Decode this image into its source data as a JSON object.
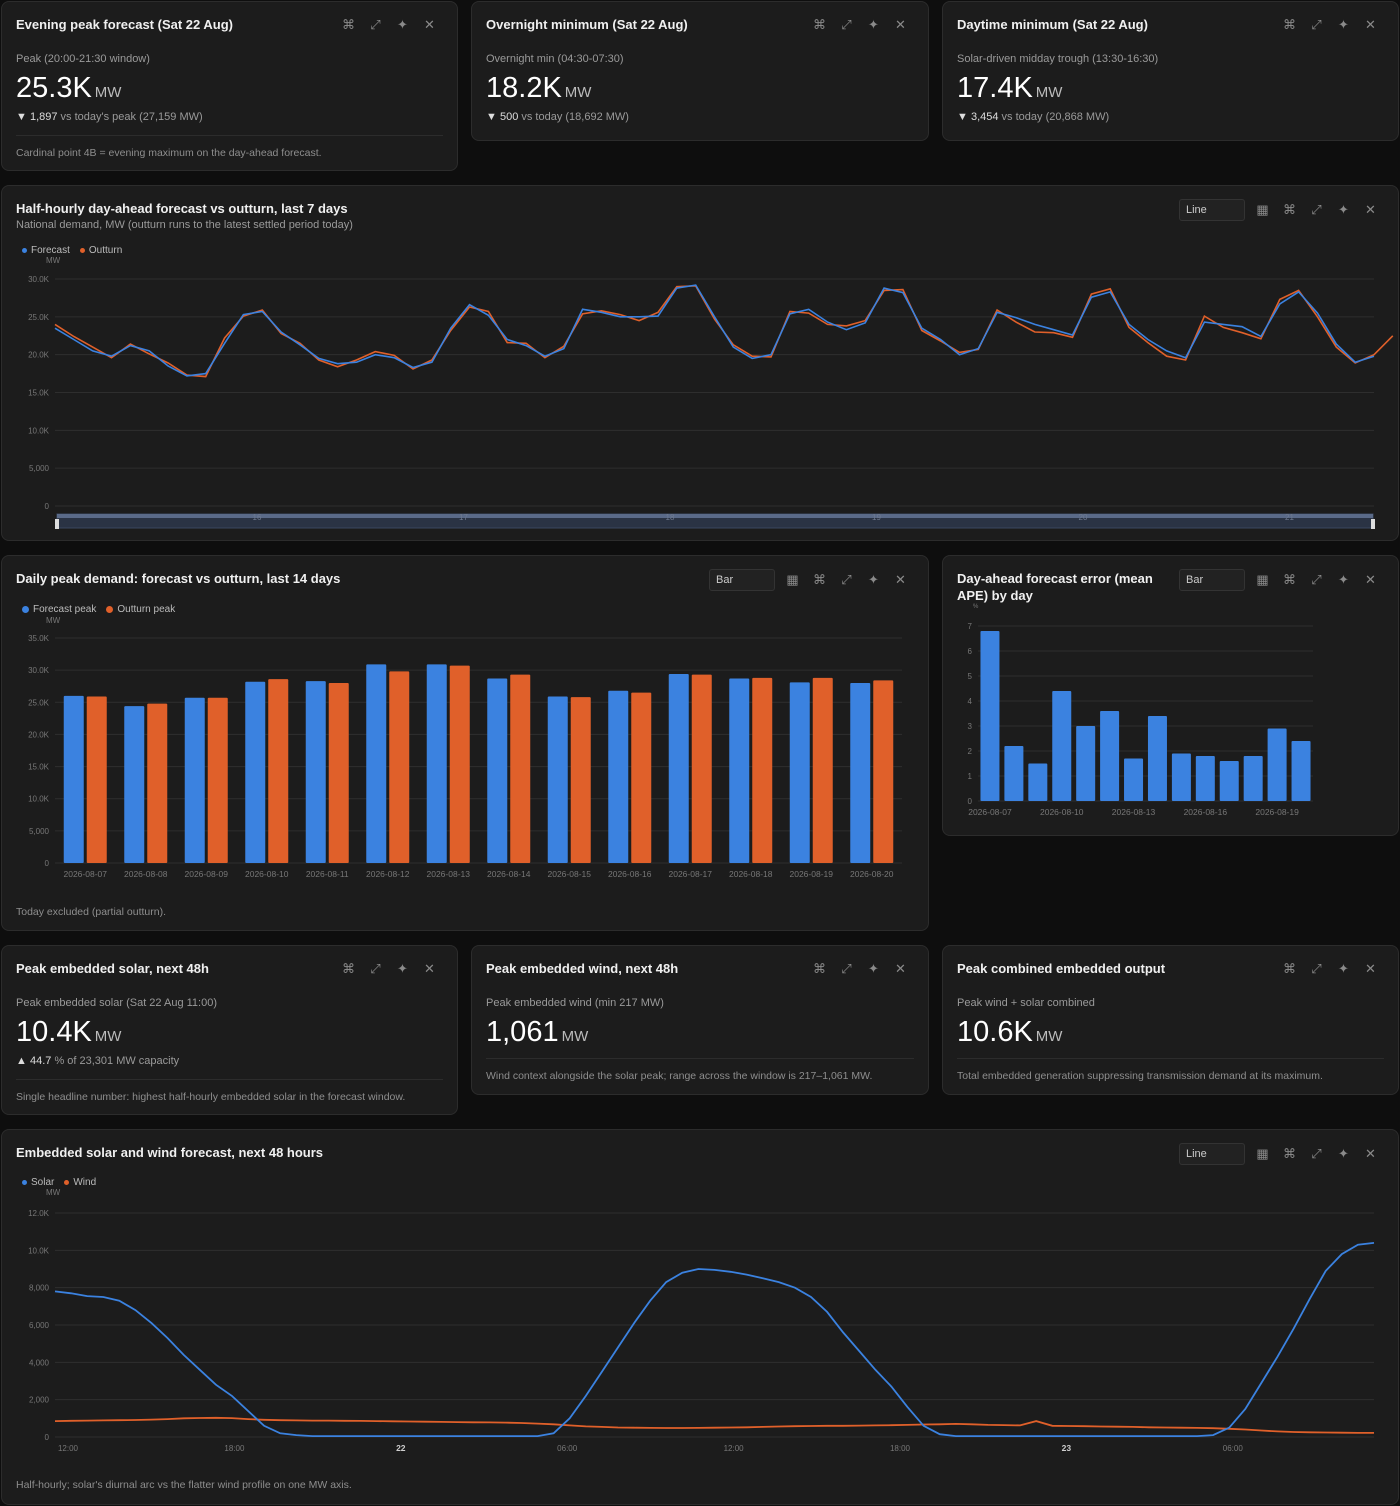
{
  "colors": {
    "forecast": "#3b82e0",
    "outturn": "#e0602a",
    "grid": "#2e2e2e",
    "axis": "#777777"
  },
  "icons": {
    "shortcut": "⌘",
    "expand": "⤢",
    "sparkle": "✦",
    "close": "✕",
    "table": "▦"
  },
  "kpi": [
    {
      "title": "Evening peak forecast (Sat 22 Aug)",
      "label": "Peak (20:00-21:30 window)",
      "value": "25.3K",
      "unit": "MW",
      "arrow": "▼",
      "delta": "1,897",
      "delta_text": "vs today's peak (27,159 MW)",
      "footnote": "Cardinal point 4B = evening maximum on the day-ahead forecast."
    },
    {
      "title": "Overnight minimum (Sat 22 Aug)",
      "label": "Overnight min (04:30-07:30)",
      "value": "18.2K",
      "unit": "MW",
      "arrow": "▼",
      "delta": "500",
      "delta_text": "vs today (18,692 MW)"
    },
    {
      "title": "Daytime minimum (Sat 22 Aug)",
      "label": "Solar-driven midday trough (13:30-16:30)",
      "value": "17.4K",
      "unit": "MW",
      "arrow": "▼",
      "delta": "3,454",
      "delta_text": "vs today (20,868 MW)"
    }
  ],
  "halfhourly": {
    "title": "Half-hourly day-ahead forecast vs outturn, last 7 days",
    "subtitle": "National demand, MW (outturn runs to the latest settled period today)",
    "chart_type": "Line",
    "legend": [
      "Forecast",
      "Outturn"
    ],
    "unit": "MW",
    "chart_data": {
      "type": "line",
      "x_ticks": [
        "16",
        "17",
        "18",
        "19",
        "20",
        "21"
      ],
      "y_ticks": [
        "0",
        "5,000",
        "10.0K",
        "15.0K",
        "20.0K",
        "25.0K",
        "30.0K"
      ],
      "ylim": [
        0,
        30000
      ],
      "series": [
        {
          "name": "Forecast",
          "values": [
            23500,
            22000,
            20500,
            19800,
            21200,
            20500,
            18500,
            17200,
            17500,
            21500,
            25300,
            25700,
            23000,
            21300,
            19500,
            18800,
            19000,
            20000,
            19600,
            18300,
            19000,
            23500,
            26600,
            25200,
            22000,
            21200,
            19800,
            20800,
            26000,
            25600,
            25000,
            25000,
            25100,
            28800,
            29200,
            25000,
            21000,
            19500,
            20000,
            25400,
            26000,
            24300,
            23300,
            24200,
            28800,
            28200,
            23500,
            22000,
            20000,
            20800,
            25600,
            24900,
            24000,
            23300,
            22600,
            27600,
            28300,
            24000,
            22000,
            20500,
            19600,
            24300,
            24000,
            23700,
            22400,
            26700,
            28300,
            25500,
            21400,
            19000,
            19800
          ],
          "xlim": [
            15.5,
            22.0
          ]
        },
        {
          "name": "Outturn",
          "values": [
            24000,
            22400,
            21000,
            19600,
            21400,
            20100,
            18900,
            17300,
            17100,
            22200,
            25100,
            25900,
            22800,
            21500,
            19300,
            18400,
            19300,
            20400,
            19900,
            18100,
            19300,
            23200,
            26300,
            25700,
            21600,
            21500,
            19600,
            21100,
            25400,
            25800,
            25300,
            24500,
            25600,
            29000,
            29100,
            24700,
            21300,
            19800,
            19700,
            25700,
            25500,
            24000,
            23800,
            24500,
            28500,
            28600,
            23200,
            21800,
            20300,
            20700,
            25900,
            24300,
            23000,
            22900,
            22300,
            28000,
            28700,
            23600,
            21600,
            19800,
            19300,
            25100,
            23600,
            22900,
            22100,
            27300,
            28500,
            25000,
            21000,
            18900,
            20000,
            22500
          ]
        }
      ]
    }
  },
  "dailypeak": {
    "title": "Daily peak demand: forecast vs outturn, last 14 days",
    "chart_type": "Bar",
    "legend": [
      "Forecast peak",
      "Outturn peak"
    ],
    "unit": "MW",
    "footnote": "Today excluded (partial outturn).",
    "chart_data": {
      "type": "bar",
      "categories": [
        "2026-08-07",
        "2026-08-08",
        "2026-08-09",
        "2026-08-10",
        "2026-08-11",
        "2026-08-12",
        "2026-08-13",
        "2026-08-14",
        "2026-08-15",
        "2026-08-16",
        "2026-08-17",
        "2026-08-18",
        "2026-08-19",
        "2026-08-20"
      ],
      "y_ticks": [
        "0",
        "5,000",
        "10.0K",
        "15.0K",
        "20.0K",
        "25.0K",
        "30.0K",
        "35.0K"
      ],
      "ylim": [
        0,
        35000
      ],
      "series": [
        {
          "name": "Forecast peak",
          "values": [
            26000,
            24400,
            25700,
            28200,
            28300,
            30900,
            30900,
            28700,
            25900,
            26800,
            29400,
            28700,
            28100,
            28000
          ]
        },
        {
          "name": "Outturn peak",
          "values": [
            25900,
            24800,
            25700,
            28600,
            28000,
            29800,
            30700,
            29300,
            25800,
            26500,
            29300,
            28800,
            28800,
            28400
          ]
        }
      ]
    }
  },
  "apeerror": {
    "title": "Day-ahead forecast error (mean APE) by day",
    "chart_type": "Bar",
    "unit": "%",
    "chart_data": {
      "type": "bar",
      "categories": [
        "2026-08-07",
        "2026-08-08",
        "2026-08-09",
        "2026-08-10",
        "2026-08-11",
        "2026-08-12",
        "2026-08-13",
        "2026-08-14",
        "2026-08-15",
        "2026-08-16",
        "2026-08-17",
        "2026-08-18",
        "2026-08-19",
        "2026-08-20"
      ],
      "x_tick_labels": [
        "2026-08-07",
        "2026-08-10",
        "2026-08-13",
        "2026-08-16",
        "2026-08-19"
      ],
      "y_ticks": [
        "0",
        "1",
        "2",
        "3",
        "4",
        "5",
        "6",
        "7"
      ],
      "ylim": [
        0,
        7
      ],
      "values": [
        6.8,
        2.2,
        1.5,
        4.4,
        3.0,
        3.6,
        1.7,
        3.4,
        1.9,
        1.8,
        1.6,
        1.8,
        2.9,
        2.4
      ]
    }
  },
  "kpi2": [
    {
      "title": "Peak embedded solar, next 48h",
      "label": "Peak embedded solar (Sat 22 Aug 11:00)",
      "value": "10.4K",
      "unit": "MW",
      "arrow": "▲",
      "delta": "44.7",
      "delta_text": "% of 23,301 MW capacity",
      "footnote": "Single headline number: highest half-hourly embedded solar in the forecast window."
    },
    {
      "title": "Peak embedded wind, next 48h",
      "label": "Peak embedded wind (min 217 MW)",
      "value": "1,061",
      "unit": "MW",
      "footnote": "Wind context alongside the solar peak; range across the window is 217–1,061 MW."
    },
    {
      "title": "Peak combined embedded output",
      "label": "Peak wind + solar combined",
      "value": "10.6K",
      "unit": "MW",
      "footnote": "Total embedded generation suppressing transmission demand at its maximum."
    }
  ],
  "embedded": {
    "title": "Embedded solar and wind forecast, next 48 hours",
    "chart_type": "Line",
    "legend": [
      "Solar",
      "Wind"
    ],
    "unit": "MW",
    "footnote": "Half-hourly; solar's diurnal arc vs the flatter wind profile on one MW axis.",
    "chart_data": {
      "type": "line",
      "x_ticks": [
        "12:00",
        "18:00",
        "22",
        "06:00",
        "12:00",
        "18:00",
        "23",
        "06:00"
      ],
      "x_tick_bold": [
        false,
        false,
        true,
        false,
        false,
        false,
        true,
        false
      ],
      "y_ticks": [
        "0",
        "2,000",
        "4,000",
        "6,000",
        "8,000",
        "10.0K",
        "12.0K"
      ],
      "ylim": [
        0,
        12000
      ],
      "series": [
        {
          "name": "Solar",
          "values": [
            7800,
            7700,
            7550,
            7500,
            7300,
            6800,
            6100,
            5300,
            4400,
            3600,
            2800,
            2200,
            1400,
            600,
            200,
            100,
            50,
            50,
            50,
            50,
            50,
            50,
            50,
            50,
            50,
            50,
            50,
            50,
            50,
            50,
            50,
            200,
            1000,
            2200,
            3500,
            4800,
            6100,
            7300,
            8300,
            8800,
            9000,
            8950,
            8850,
            8700,
            8500,
            8300,
            8000,
            7500,
            6700,
            5600,
            4600,
            3600,
            2700,
            1600,
            600,
            150,
            50,
            50,
            50,
            50,
            50,
            50,
            50,
            50,
            50,
            50,
            50,
            50,
            50,
            50,
            50,
            50,
            100,
            500,
            1500,
            2900,
            4300,
            5800,
            7400,
            8900,
            9800,
            10300,
            10400
          ],
          "xlim": [
            11.5,
            53.5
          ]
        },
        {
          "name": "Wind",
          "values": [
            850,
            870,
            880,
            890,
            900,
            910,
            930,
            960,
            1000,
            1020,
            1030,
            1010,
            960,
            920,
            900,
            890,
            880,
            880,
            870,
            860,
            850,
            840,
            830,
            820,
            810,
            800,
            790,
            780,
            770,
            750,
            720,
            680,
            620,
            570,
            540,
            510,
            500,
            490,
            480,
            480,
            490,
            500,
            510,
            520,
            540,
            560,
            580,
            590,
            600,
            600,
            610,
            620,
            630,
            650,
            670,
            680,
            700,
            680,
            650,
            640,
            620,
            850,
            600,
            590,
            580,
            560,
            550,
            540,
            520,
            510,
            500,
            490,
            470,
            440,
            400,
            350,
            300,
            270,
            250,
            240,
            230,
            220,
            217
          ]
        }
      ]
    }
  }
}
